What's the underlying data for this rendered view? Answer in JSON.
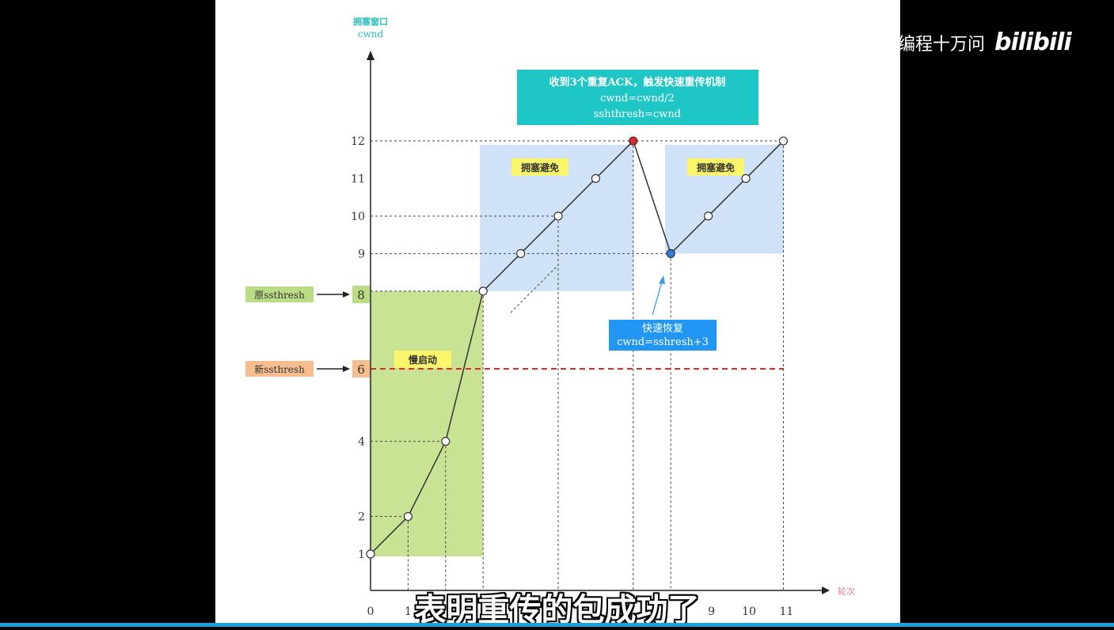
{
  "watermark": {
    "channel": "编程十万问",
    "logo": "bilibili"
  },
  "subtitle": "表明重传的包成功了",
  "colors": {
    "slow_start": "#c9e394",
    "avoidance": "#cfe2f7",
    "teal_box": "#1ec6c6",
    "recovery_box": "#2196f3",
    "label_yellow": "#fbf56c",
    "old_ssthresh": "#b9dc84",
    "new_ssthresh": "#f6be8e",
    "threshold_line": "#e8232b",
    "peak_point": "#e0262e",
    "recovery_point": "#2f7fe0"
  },
  "chart_data": {
    "type": "line",
    "ylabel": [
      "拥塞窗口",
      "cwnd"
    ],
    "xlabel": "轮次",
    "x": [
      0,
      1,
      2,
      3,
      4,
      5,
      6,
      7,
      8,
      9,
      10,
      11
    ],
    "y": [
      1,
      2,
      4,
      8,
      9,
      10,
      11,
      12,
      9,
      10,
      11,
      12
    ],
    "x_ticks": [
      "0",
      "1",
      "",
      "",
      "",
      "",
      "",
      "",
      "",
      "9",
      "10",
      "11"
    ],
    "y_ticks": [
      1,
      2,
      4,
      6,
      8,
      9,
      10,
      11,
      12
    ],
    "special_points": {
      "peak": {
        "x": 7,
        "y": 12
      },
      "recovery": {
        "x": 8,
        "y": 9
      }
    },
    "regions": [
      {
        "label": "慢启动",
        "x": [
          0,
          3
        ],
        "y": [
          1,
          8
        ]
      },
      {
        "label": "拥塞避免",
        "x": [
          3,
          7
        ],
        "y": [
          8,
          12
        ]
      },
      {
        "label": "拥塞避免",
        "x": [
          8,
          11
        ],
        "y": [
          9,
          12
        ]
      }
    ],
    "thresholds": [
      {
        "label": "原ssthresh",
        "value": 8
      },
      {
        "label": "新ssthresh",
        "value": 6
      }
    ],
    "annotations": {
      "fast_retransmit": [
        "收到3个重复ACK，触发快速重传机制",
        "cwnd=cwnd/2",
        "sshthresh=cwnd"
      ],
      "fast_recovery": [
        "快速恢复",
        "cwnd=sshresh+3"
      ]
    }
  }
}
